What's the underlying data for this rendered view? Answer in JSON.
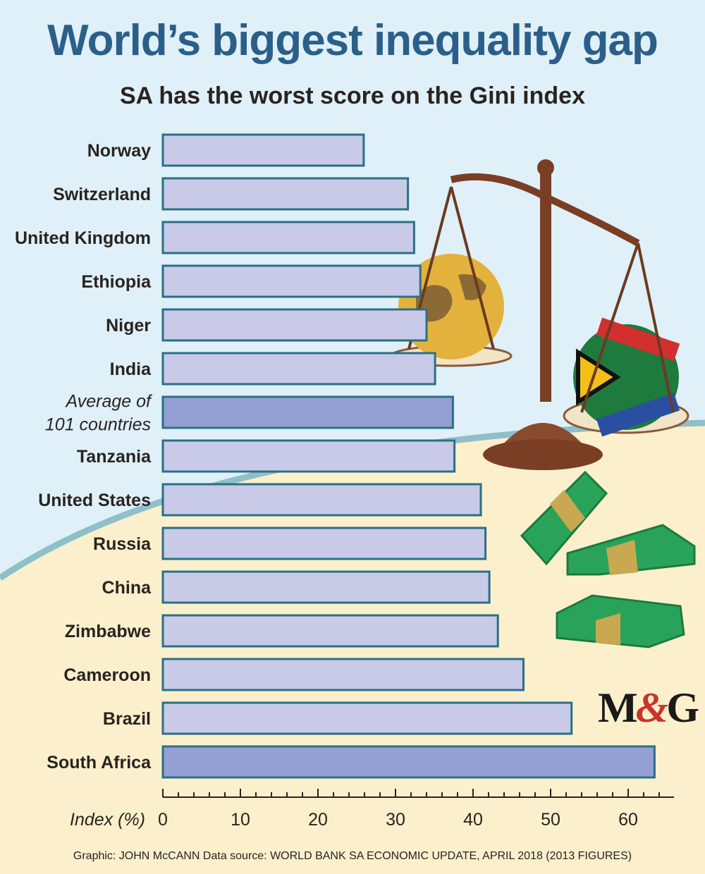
{
  "header": {
    "title": "World’s biggest inequality gap",
    "subtitle": "SA has the worst score on the Gini index"
  },
  "logo": {
    "left": "M",
    "amp": "&",
    "right": "G"
  },
  "credit": "Graphic: JOHN McCANN  Data source: WORLD BANK SA ECONOMIC UPDATE, APRIL 2018 (2013 FIGURES)",
  "colors": {
    "bar": "#c8cae8",
    "bar_highlight": "#949fd3",
    "bar_outline": "#2b6f86",
    "background_sky": "#dff0f8",
    "background_sand": "#fbf0cb",
    "arc": "#8fbfc9"
  },
  "chart_data": {
    "type": "bar",
    "orientation": "horizontal",
    "categories": [
      "Norway",
      "Switzerland",
      "United Kingdom",
      "Ethiopia",
      "Niger",
      "India",
      "Average of 101 countries",
      "Tanzania",
      "United States",
      "Russia",
      "China",
      "Zimbabwe",
      "Cameroon",
      "Brazil",
      "South Africa"
    ],
    "category_lines": [
      [
        "Norway"
      ],
      [
        "Switzerland"
      ],
      [
        "United Kingdom"
      ],
      [
        "Ethiopia"
      ],
      [
        "Niger"
      ],
      [
        "India"
      ],
      [
        "Average of",
        "101 countries"
      ],
      [
        "Tanzania"
      ],
      [
        "United States"
      ],
      [
        "Russia"
      ],
      [
        "China"
      ],
      [
        "Zimbabwe"
      ],
      [
        "Cameroon"
      ],
      [
        "Brazil"
      ],
      [
        "South Africa"
      ]
    ],
    "values": [
      25.9,
      31.6,
      32.4,
      33.2,
      34.0,
      35.1,
      37.4,
      37.6,
      41.0,
      41.6,
      42.1,
      43.2,
      46.5,
      52.7,
      63.4
    ],
    "highlight": [
      "Average of 101 countries",
      "South Africa"
    ],
    "xlabel": "Index (%)",
    "xlim": [
      0,
      65
    ],
    "xticks": [
      0,
      10,
      20,
      30,
      40,
      50,
      60
    ],
    "grid": false,
    "legend": "none"
  }
}
